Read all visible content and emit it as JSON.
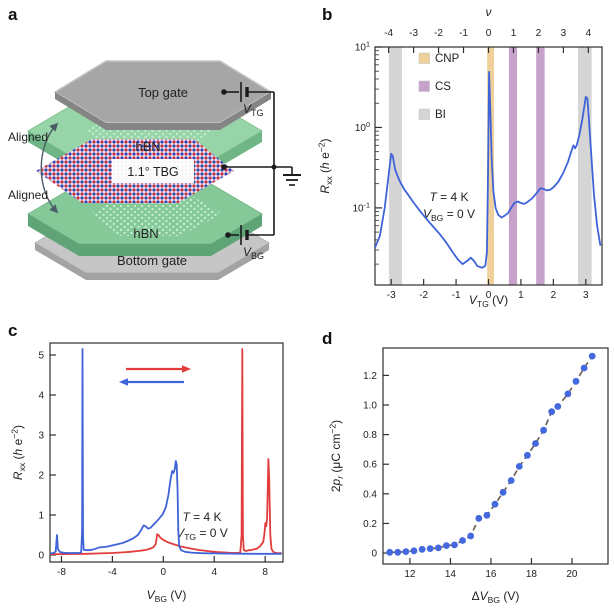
{
  "panels": {
    "a": {
      "label": "a",
      "layers": {
        "top_gate": "Top gate",
        "hbn_top": "hBN",
        "tbg": "1.1° TBG",
        "hbn_bottom": "hBN",
        "bottom_gate": "Bottom gate"
      },
      "aligned_top": "Aligned",
      "aligned_bottom": "Aligned",
      "circuit": {
        "vtg": {
          "main": "V",
          "sub": "TG"
        },
        "vbg": {
          "main": "V",
          "sub": "BG"
        }
      },
      "colors": {
        "gate_gray": "#a6a6a6",
        "hbn_green": "#97d5a8",
        "moire_red": "#c23046",
        "moire_blue": "#3340b5"
      }
    },
    "b": {
      "label": "b"
    },
    "c": {
      "label": "c"
    },
    "d": {
      "label": "d"
    }
  },
  "chart_data": [
    {
      "panel": "b",
      "type": "line",
      "xlabel_parts": [
        {
          "t": "V",
          "i": 1
        },
        {
          "t": "TG",
          "s": 1
        },
        {
          "t": " (V)"
        }
      ],
      "ylabel_parts": [
        {
          "t": "R",
          "i": 1
        },
        {
          "t": "xx",
          "s": 1
        },
        {
          "t": " ("
        },
        {
          "t": "h",
          "i": 1
        },
        {
          "t": " e"
        },
        {
          "t": "−2",
          "p": 1
        },
        {
          "t": ")"
        }
      ],
      "top_axis_label_parts": [
        {
          "t": "ν",
          "i": 1
        }
      ],
      "top_ticks": [
        -4,
        -3,
        -2,
        -1,
        0,
        1,
        2,
        3,
        4
      ],
      "nu_to_v": 0.77,
      "x_ticks": [
        -3,
        -2,
        -1,
        0,
        1,
        2,
        3
      ],
      "xlim": [
        -3.5,
        3.5
      ],
      "ylim_log": [
        0.011,
        10
      ],
      "y_tick_exponents": [
        1,
        0,
        -1
      ],
      "grid": false,
      "legend_position": "top-left",
      "legend": [
        {
          "label": "CNP",
          "color": "#f0d09a"
        },
        {
          "label": "CS",
          "color": "#c6a2cb"
        },
        {
          "label": "BI",
          "color": "#d5d5d5"
        }
      ],
      "bands": [
        {
          "from": -3.07,
          "to": -2.67,
          "color": "#d5d5d5"
        },
        {
          "from": -0.04,
          "to": 0.17,
          "color": "#f0d09a"
        },
        {
          "from": 0.63,
          "to": 0.88,
          "color": "#c6a2cb"
        },
        {
          "from": 1.47,
          "to": 1.73,
          "color": "#c6a2cb"
        },
        {
          "from": 2.76,
          "to": 3.18,
          "color": "#d5d5d5"
        }
      ],
      "annotation": [
        [
          {
            "t": "T",
            "i": 1
          },
          {
            "t": " = 4 K"
          }
        ],
        [
          {
            "t": "V",
            "i": 1
          },
          {
            "t": "BG",
            "s": 1
          },
          {
            "t": " = 0 V"
          }
        ]
      ],
      "series": [
        {
          "name": "Rxx vs VTG",
          "color": "#3f63d8",
          "points": [
            [
              -3.5,
              0.032
            ],
            [
              -3.35,
              0.045
            ],
            [
              -3.2,
              0.1
            ],
            [
              -3.1,
              0.22
            ],
            [
              -3.0,
              0.47
            ],
            [
              -2.95,
              0.44
            ],
            [
              -2.88,
              0.3
            ],
            [
              -2.75,
              0.22
            ],
            [
              -2.6,
              0.17
            ],
            [
              -2.5,
              0.15
            ],
            [
              -2.3,
              0.115
            ],
            [
              -2.1,
              0.09
            ],
            [
              -1.9,
              0.072
            ],
            [
              -1.7,
              0.058
            ],
            [
              -1.5,
              0.047
            ],
            [
              -1.3,
              0.037
            ],
            [
              -1.1,
              0.028
            ],
            [
              -0.95,
              0.023
            ],
            [
              -0.8,
              0.02
            ],
            [
              -0.65,
              0.022
            ],
            [
              -0.55,
              0.024
            ],
            [
              -0.45,
              0.022
            ],
            [
              -0.35,
              0.019
            ],
            [
              -0.2,
              0.018
            ],
            [
              -0.1,
              0.019
            ],
            [
              -0.05,
              0.028
            ],
            [
              -0.02,
              0.2
            ],
            [
              0.02,
              4.9
            ],
            [
              0.06,
              1.5
            ],
            [
              0.1,
              0.4
            ],
            [
              0.15,
              0.16
            ],
            [
              0.22,
              0.1
            ],
            [
              0.3,
              0.082
            ],
            [
              0.4,
              0.076
            ],
            [
              0.5,
              0.08
            ],
            [
              0.6,
              0.086
            ],
            [
              0.7,
              0.1
            ],
            [
              0.8,
              0.115
            ],
            [
              0.9,
              0.12
            ],
            [
              1.0,
              0.115
            ],
            [
              1.1,
              0.112
            ],
            [
              1.2,
              0.118
            ],
            [
              1.35,
              0.132
            ],
            [
              1.5,
              0.155
            ],
            [
              1.6,
              0.175
            ],
            [
              1.7,
              0.172
            ],
            [
              1.8,
              0.165
            ],
            [
              1.9,
              0.168
            ],
            [
              2.0,
              0.18
            ],
            [
              2.15,
              0.21
            ],
            [
              2.3,
              0.27
            ],
            [
              2.45,
              0.37
            ],
            [
              2.55,
              0.5
            ],
            [
              2.62,
              0.6
            ],
            [
              2.67,
              0.55
            ],
            [
              2.72,
              0.6
            ],
            [
              2.8,
              0.8
            ],
            [
              2.9,
              1.3
            ],
            [
              3.0,
              2.4
            ],
            [
              3.05,
              2.3
            ],
            [
              3.1,
              1.2
            ],
            [
              3.17,
              0.45
            ],
            [
              3.25,
              0.15
            ],
            [
              3.35,
              0.06
            ],
            [
              3.45,
              0.034
            ]
          ]
        }
      ]
    },
    {
      "panel": "c",
      "type": "line",
      "xlabel_parts": [
        {
          "t": "V",
          "i": 1
        },
        {
          "t": "BG",
          "s": 1
        },
        {
          "t": " (V)"
        }
      ],
      "ylabel_parts": [
        {
          "t": "R",
          "i": 1
        },
        {
          "t": "xx",
          "s": 1
        },
        {
          "t": " ("
        },
        {
          "t": "h",
          "i": 1
        },
        {
          "t": " e"
        },
        {
          "t": "−2",
          "p": 1
        },
        {
          "t": ")"
        }
      ],
      "x_ticks": [
        -8,
        -4,
        0,
        4,
        8
      ],
      "y_ticks": [
        0,
        1,
        2,
        3,
        4,
        5
      ],
      "xlim": [
        -8.9,
        9.4
      ],
      "ylim": [
        -0.175,
        5.3
      ],
      "grid": false,
      "legend_arrows": [
        {
          "color": "#e23c3c",
          "direction": "right"
        },
        {
          "color": "#3f63d8",
          "direction": "left"
        }
      ],
      "annotation": [
        [
          {
            "t": "T",
            "i": 1
          },
          {
            "t": " = 4 K"
          }
        ],
        [
          {
            "t": "V",
            "i": 1
          },
          {
            "t": "TG",
            "s": 1
          },
          {
            "t": " = 0 V"
          }
        ]
      ],
      "series": [
        {
          "name": "sweep right",
          "color": "#e23c3c",
          "points": [
            [
              -8.9,
              0.02
            ],
            [
              -8.0,
              0.022
            ],
            [
              -7.0,
              0.025
            ],
            [
              -6.0,
              0.03
            ],
            [
              -5.0,
              0.04
            ],
            [
              -4.0,
              0.05
            ],
            [
              -3.2,
              0.065
            ],
            [
              -2.6,
              0.08
            ],
            [
              -2.0,
              0.1
            ],
            [
              -1.5,
              0.12
            ],
            [
              -1.1,
              0.15
            ],
            [
              -0.8,
              0.19
            ],
            [
              -0.6,
              0.27
            ],
            [
              -0.48,
              0.52
            ],
            [
              -0.38,
              0.5
            ],
            [
              -0.25,
              0.44
            ],
            [
              -0.1,
              0.4
            ],
            [
              0.1,
              0.36
            ],
            [
              0.35,
              0.32
            ],
            [
              0.6,
              0.29
            ],
            [
              0.9,
              0.26
            ],
            [
              1.3,
              0.22
            ],
            [
              1.7,
              0.19
            ],
            [
              2.2,
              0.16
            ],
            [
              2.7,
              0.13
            ],
            [
              3.2,
              0.11
            ],
            [
              3.7,
              0.09
            ],
            [
              4.2,
              0.075
            ],
            [
              4.7,
              0.065
            ],
            [
              5.2,
              0.055
            ],
            [
              5.7,
              0.05
            ],
            [
              6.05,
              0.06
            ],
            [
              6.15,
              0.5
            ],
            [
              6.2,
              5.15
            ],
            [
              6.25,
              0.5
            ],
            [
              6.32,
              0.12
            ],
            [
              6.5,
              0.1
            ],
            [
              6.7,
              0.12
            ],
            [
              6.9,
              0.12
            ],
            [
              7.1,
              0.14
            ],
            [
              7.35,
              0.16
            ],
            [
              7.6,
              0.22
            ],
            [
              7.85,
              0.33
            ],
            [
              7.95,
              0.55
            ],
            [
              8.02,
              0.8
            ],
            [
              8.08,
              0.72
            ],
            [
              8.15,
              0.9
            ],
            [
              8.25,
              2.4
            ],
            [
              8.32,
              1.9
            ],
            [
              8.4,
              0.5
            ],
            [
              8.5,
              0.15
            ],
            [
              8.65,
              0.07
            ],
            [
              8.9,
              0.05
            ],
            [
              9.3,
              0.045
            ]
          ]
        },
        {
          "name": "sweep left",
          "color": "#3f63d8",
          "points": [
            [
              -8.9,
              0.04
            ],
            [
              -8.6,
              0.05
            ],
            [
              -8.45,
              0.09
            ],
            [
              -8.35,
              0.5
            ],
            [
              -8.28,
              0.15
            ],
            [
              -8.1,
              0.07
            ],
            [
              -7.8,
              0.055
            ],
            [
              -7.4,
              0.05
            ],
            [
              -7.0,
              0.05
            ],
            [
              -6.6,
              0.05
            ],
            [
              -6.45,
              0.07
            ],
            [
              -6.38,
              0.6
            ],
            [
              -6.35,
              5.15
            ],
            [
              -6.31,
              0.5
            ],
            [
              -6.25,
              0.13
            ],
            [
              -6.0,
              0.12
            ],
            [
              -5.6,
              0.13
            ],
            [
              -5.2,
              0.17
            ],
            [
              -5.0,
              0.19
            ],
            [
              -4.7,
              0.2
            ],
            [
              -4.4,
              0.21
            ],
            [
              -4.0,
              0.24
            ],
            [
              -3.6,
              0.27
            ],
            [
              -3.2,
              0.3
            ],
            [
              -2.8,
              0.35
            ],
            [
              -2.4,
              0.41
            ],
            [
              -2.0,
              0.5
            ],
            [
              -1.75,
              0.62
            ],
            [
              -1.55,
              0.74
            ],
            [
              -1.4,
              0.72
            ],
            [
              -1.2,
              0.66
            ],
            [
              -1.0,
              0.68
            ],
            [
              -0.8,
              0.75
            ],
            [
              -0.55,
              0.83
            ],
            [
              -0.3,
              0.92
            ],
            [
              -0.05,
              1.02
            ],
            [
              0.2,
              1.2
            ],
            [
              0.4,
              1.5
            ],
            [
              0.55,
              1.85
            ],
            [
              0.7,
              2.1
            ],
            [
              0.8,
              2.05
            ],
            [
              0.9,
              2.15
            ],
            [
              0.98,
              2.35
            ],
            [
              1.05,
              2.25
            ],
            [
              1.12,
              1.6
            ],
            [
              1.18,
              0.6
            ],
            [
              1.25,
              0.22
            ],
            [
              1.4,
              0.12
            ],
            [
              1.7,
              0.08
            ],
            [
              2.2,
              0.06
            ],
            [
              3.0,
              0.045
            ],
            [
              4.0,
              0.04
            ],
            [
              5.0,
              0.035
            ],
            [
              6.0,
              0.032
            ],
            [
              7.0,
              0.03
            ],
            [
              8.0,
              0.03
            ],
            [
              9.3,
              0.03
            ]
          ]
        }
      ]
    },
    {
      "panel": "d",
      "type": "scatter",
      "xlabel_parts": [
        {
          "t": "Δ"
        },
        {
          "t": "V",
          "i": 1
        },
        {
          "t": "BG",
          "s": 1
        },
        {
          "t": " (V)"
        }
      ],
      "ylabel_parts": [
        {
          "t": "2"
        },
        {
          "t": "p",
          "i": 1
        },
        {
          "t": "r",
          "s": 1,
          "i": 1
        },
        {
          "t": " (μC cm"
        },
        {
          "t": "−2",
          "p": 1
        },
        {
          "t": ")"
        }
      ],
      "x_ticks": [
        12,
        14,
        16,
        18,
        20
      ],
      "y_tick_labels": [
        "0",
        "0.2",
        "0.4",
        "0.6",
        "0.8",
        "1.0",
        "1.2"
      ],
      "xlim": [
        10.67,
        21.78
      ],
      "ylim": [
        -0.074,
        1.385
      ],
      "grid": false,
      "point_color": "#4468dd",
      "trend_color": "#6f6258",
      "trend_style": "dashed",
      "points": [
        [
          11.0,
          0.005
        ],
        [
          11.4,
          0.005
        ],
        [
          11.8,
          0.01
        ],
        [
          12.2,
          0.015
        ],
        [
          12.6,
          0.025
        ],
        [
          13.0,
          0.03
        ],
        [
          13.4,
          0.035
        ],
        [
          13.8,
          0.05
        ],
        [
          14.2,
          0.055
        ],
        [
          14.6,
          0.085
        ],
        [
          15.0,
          0.115
        ],
        [
          15.4,
          0.235
        ],
        [
          15.8,
          0.255
        ],
        [
          16.2,
          0.33
        ],
        [
          16.6,
          0.41
        ],
        [
          17.0,
          0.49
        ],
        [
          17.4,
          0.585
        ],
        [
          17.8,
          0.66
        ],
        [
          18.2,
          0.74
        ],
        [
          18.6,
          0.83
        ],
        [
          19.0,
          0.955
        ],
        [
          19.3,
          0.99
        ],
        [
          19.8,
          1.075
        ],
        [
          20.2,
          1.16
        ],
        [
          20.6,
          1.25
        ],
        [
          21.0,
          1.33
        ]
      ]
    }
  ]
}
